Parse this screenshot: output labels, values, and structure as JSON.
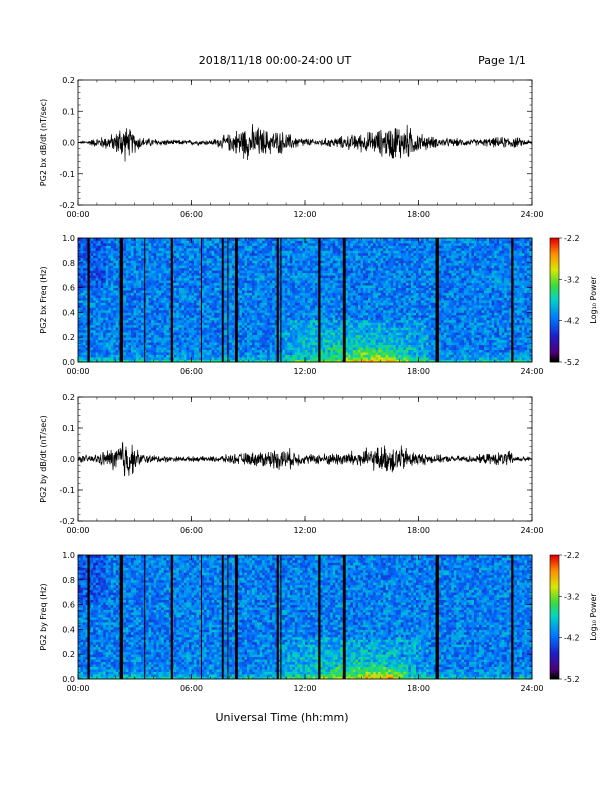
{
  "header": {
    "date_range": "2018/11/18  00:00-24:00 UT",
    "page": "Page 1/1"
  },
  "footer": {
    "xlabel": "Universal Time (hh:mm)"
  },
  "chart_data": [
    {
      "type": "line",
      "ylabel": "PG2 bx dB/dt (nT/sec)",
      "xlim": [
        0,
        24
      ],
      "ylim": [
        -0.2,
        0.2
      ],
      "yticks": [
        "0.2",
        "0.1",
        "0.0",
        "-0.1",
        "-0.2"
      ],
      "xticks": [
        "00:00",
        "06:00",
        "12:00",
        "18:00",
        "24:00"
      ],
      "series": [
        {
          "x": [
            0,
            1,
            2,
            2.3,
            2.8,
            3.5,
            5,
            7,
            8.1,
            8.6,
            9.3,
            10,
            10.8,
            11.5,
            12.5,
            14,
            15.5,
            16.2,
            16.8,
            17.4,
            18,
            19,
            21,
            22.9,
            24
          ],
          "y": [
            0.0,
            0.015,
            0.03,
            0.065,
            0.04,
            0.015,
            0.008,
            0.008,
            0.03,
            0.05,
            0.055,
            0.04,
            0.035,
            0.02,
            0.01,
            0.02,
            0.035,
            0.045,
            0.06,
            0.055,
            0.03,
            0.015,
            0.01,
            0.02,
            0.005
          ]
        }
      ]
    },
    {
      "type": "heatmap",
      "ylabel": "PG2 bx Freq (Hz)",
      "xlim": [
        0,
        24
      ],
      "ylim": [
        0.0,
        1.0
      ],
      "yticks": [
        "1.0",
        "0.8",
        "0.6",
        "0.4",
        "0.2",
        "0.0"
      ],
      "xticks": [
        "00:00",
        "06:00",
        "12:00",
        "18:00",
        "24:00"
      ],
      "colorbar": {
        "label": "Log₁₀ Power",
        "range": [
          -5.2,
          -2.2
        ],
        "ticks": [
          "-2.2",
          "-3.2",
          "-4.2",
          "-5.2"
        ]
      },
      "gaps_hours": [
        0.5,
        2.2,
        3.5,
        4.9,
        6.5,
        7.6,
        7.9,
        8.3,
        10.5,
        10.7,
        12.7,
        14.0,
        18.9,
        22.9
      ],
      "gap_widths_hours": [
        0.12,
        0.18,
        0.05,
        0.12,
        0.05,
        0.1,
        0.05,
        0.15,
        0.12,
        0.05,
        0.12,
        0.15,
        0.18,
        0.12
      ],
      "enhancement_hours": [
        {
          "start": 10.5,
          "end": 18.5,
          "fmax": 0.35
        },
        {
          "start": 14.8,
          "end": 17.5,
          "fmax": 0.12
        }
      ]
    },
    {
      "type": "line",
      "ylabel": "PG2 by dB/dt (nT/sec)",
      "xlim": [
        0,
        24
      ],
      "ylim": [
        -0.2,
        0.2
      ],
      "yticks": [
        "0.2",
        "0.1",
        "0.0",
        "-0.1",
        "-0.2"
      ],
      "xticks": [
        "00:00",
        "06:00",
        "12:00",
        "18:00",
        "24:00"
      ],
      "series": [
        {
          "x": [
            0,
            1,
            2,
            2.3,
            2.6,
            3.0,
            3.5,
            5,
            7,
            8.1,
            9,
            10.2,
            11,
            12,
            13.5,
            15,
            16,
            16.7,
            17.4,
            18,
            19.5,
            21,
            22.8,
            23.2,
            24
          ],
          "y": [
            0.01,
            0.015,
            0.04,
            0.07,
            0.075,
            0.035,
            0.015,
            0.008,
            0.008,
            0.015,
            0.02,
            0.03,
            0.035,
            0.015,
            0.02,
            0.03,
            0.04,
            0.05,
            0.035,
            0.02,
            0.01,
            0.012,
            0.025,
            0.01,
            0.005
          ]
        }
      ]
    },
    {
      "type": "heatmap",
      "ylabel": "PG2 by Freq (Hz)",
      "xlim": [
        0,
        24
      ],
      "ylim": [
        0.0,
        1.0
      ],
      "yticks": [
        "1.0",
        "0.8",
        "0.6",
        "0.4",
        "0.2",
        "0.0"
      ],
      "xticks": [
        "00:00",
        "06:00",
        "12:00",
        "18:00",
        "24:00"
      ],
      "colorbar": {
        "label": "Log₁₀ Power",
        "range": [
          -5.2,
          -2.2
        ],
        "ticks": [
          "-2.2",
          "-3.2",
          "-4.2",
          "-5.2"
        ]
      },
      "gaps_hours": [
        0.5,
        2.2,
        3.5,
        4.9,
        6.5,
        7.6,
        7.9,
        8.3,
        10.5,
        10.7,
        12.7,
        14.0,
        18.9,
        22.9
      ],
      "gap_widths_hours": [
        0.12,
        0.18,
        0.05,
        0.12,
        0.05,
        0.1,
        0.05,
        0.15,
        0.12,
        0.05,
        0.12,
        0.15,
        0.18,
        0.12
      ],
      "enhancement_hours": [
        {
          "start": 10.5,
          "end": 18.5,
          "fmax": 0.35
        },
        {
          "start": 14.8,
          "end": 17.5,
          "fmax": 0.12
        }
      ]
    }
  ]
}
